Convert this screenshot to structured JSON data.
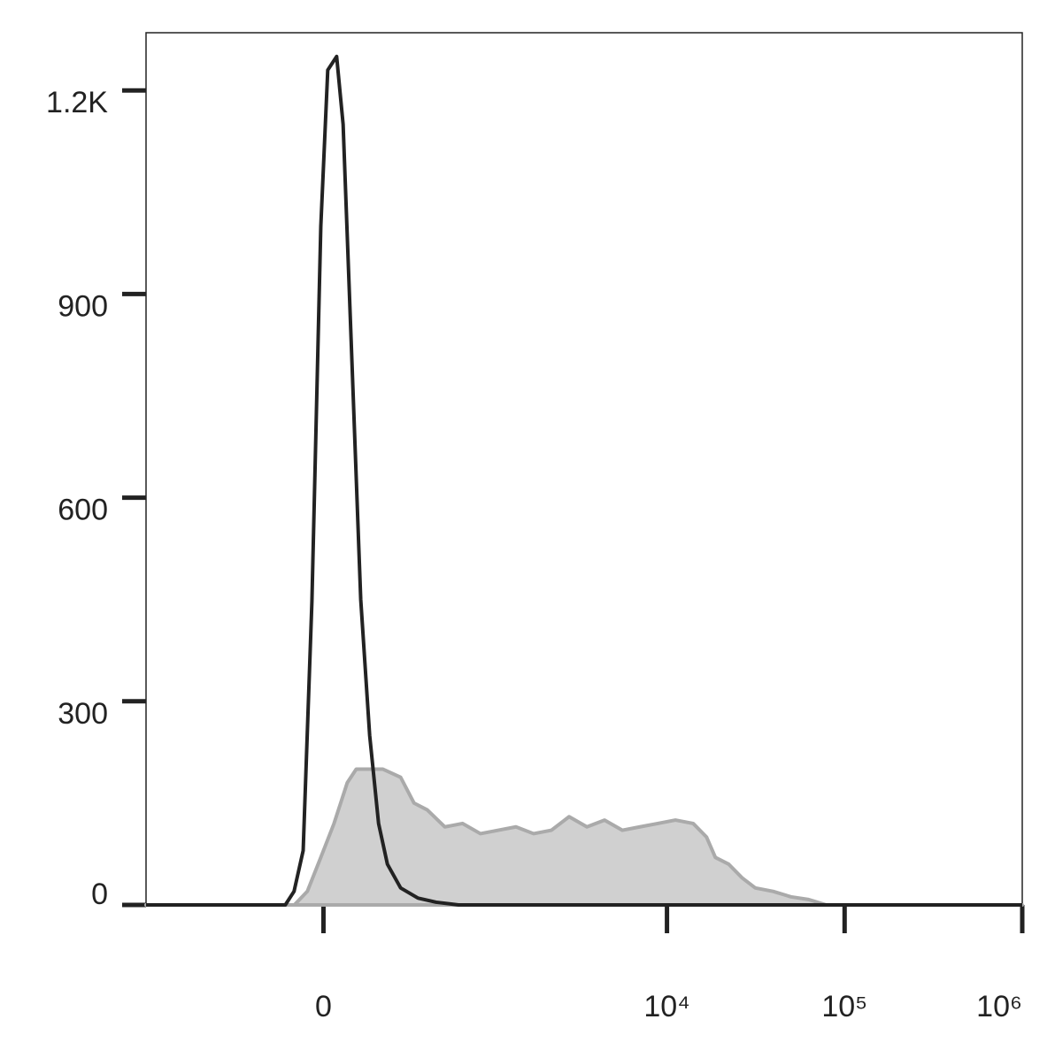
{
  "chart_data": {
    "type": "line",
    "xscale": "asinh",
    "xlim": [
      -1150,
      1000000
    ],
    "ylim": [
      0,
      1285
    ],
    "xticks": [
      {
        "value": 0,
        "label": "0"
      },
      {
        "value": 10000,
        "label": "10⁴"
      },
      {
        "value": 100000,
        "label": "10⁵"
      },
      {
        "value": 1000000,
        "label": "10⁶"
      }
    ],
    "yticks": [
      0,
      300,
      600,
      900,
      {
        "value": 1200,
        "label": "1.2K"
      }
    ],
    "series": [
      {
        "type": "area",
        "color": "#d0d0d0",
        "edge_color": "#aaaaaa",
        "x": [
          -1150,
          -90,
          -49,
          -8,
          32,
          73,
          102,
          132,
          198,
          274,
          341,
          417,
          538,
          687,
          876,
          1111,
          1403,
          1768,
          2230,
          2808,
          3540,
          4450,
          5610,
          7040,
          8870,
          11160,
          14050,
          16700,
          18730,
          22270,
          26450,
          31430,
          39560,
          49790,
          62660,
          78870,
          1000000
        ],
        "values": [
          0,
          0,
          20,
          70,
          120,
          180,
          200,
          200,
          200,
          188,
          150,
          140,
          115,
          120,
          105,
          110,
          115,
          105,
          110,
          130,
          115,
          125,
          110,
          115,
          120,
          125,
          120,
          100,
          70,
          60,
          40,
          25,
          20,
          12,
          8,
          0,
          0
        ]
      },
      {
        "type": "line",
        "color": "#222222",
        "x": [
          -1150,
          -120,
          -91,
          -62,
          -35,
          -8,
          13,
          40,
          60,
          88,
          117,
          148,
          181,
          216,
          274,
          363,
          475,
          650,
          1000000
        ],
        "values": [
          0,
          0,
          20,
          80,
          447,
          1000,
          1230,
          1250,
          1150,
          800,
          450,
          250,
          120,
          60,
          25,
          10,
          4,
          0,
          0
        ]
      }
    ]
  }
}
